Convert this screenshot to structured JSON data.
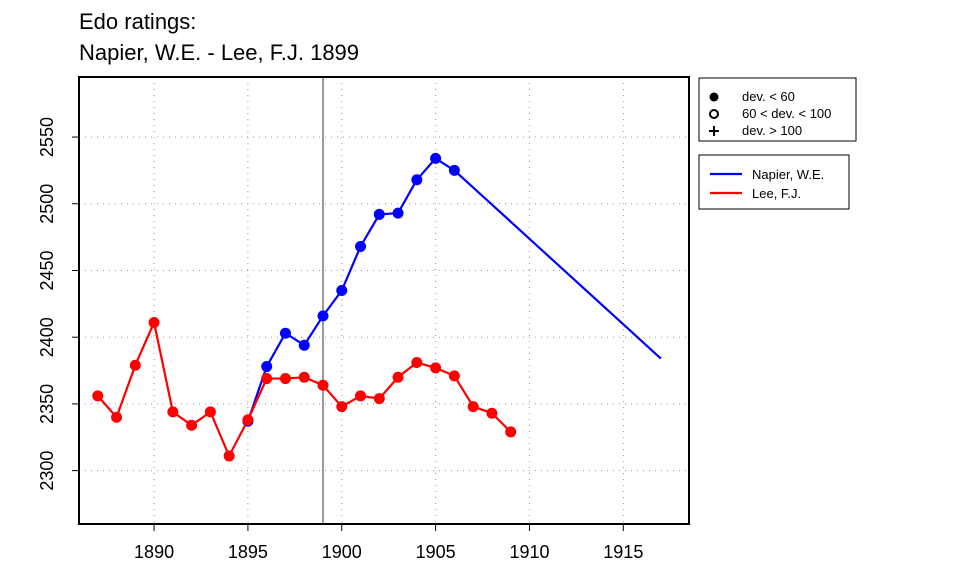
{
  "chart_data": {
    "type": "line",
    "title": "Edo ratings:",
    "subtitle": "Napier, W.E. - Lee, F.J. 1899",
    "xlabel": "",
    "ylabel": "",
    "xlim": [
      1886,
      1918.5
    ],
    "ylim": [
      2260,
      2595
    ],
    "x_ticks": [
      1890,
      1895,
      1900,
      1905,
      1910,
      1915
    ],
    "y_ticks": [
      2300,
      2350,
      2400,
      2450,
      2500,
      2550
    ],
    "grid": true,
    "marker_line_year": 1899,
    "legend_markers": [
      {
        "symbol": "filled-circle",
        "label": "dev. < 60"
      },
      {
        "symbol": "open-circle",
        "label": "60 < dev. < 100"
      },
      {
        "symbol": "plus",
        "label": "dev. > 100"
      }
    ],
    "series": [
      {
        "name": "Napier, W.E.",
        "color": "#0000ff",
        "x": [
          1895,
          1896,
          1897,
          1898,
          1899,
          1900,
          1901,
          1902,
          1903,
          1904,
          1905,
          1906
        ],
        "y": [
          2337,
          2378,
          2403,
          2394,
          2416,
          2435,
          2468,
          2492,
          2493,
          2518,
          2534,
          2525
        ],
        "extension": {
          "x": [
            1906,
            1917
          ],
          "y": [
            2525,
            2384
          ]
        }
      },
      {
        "name": "Lee, F.J.",
        "color": "#ff0000",
        "x": [
          1887,
          1888,
          1889,
          1890,
          1891,
          1892,
          1893,
          1894,
          1895,
          1896,
          1897,
          1898,
          1899,
          1900,
          1901,
          1902,
          1903,
          1904,
          1905,
          1906,
          1907,
          1908,
          1909
        ],
        "y": [
          2356,
          2340,
          2379,
          2411,
          2344,
          2334,
          2344,
          2311,
          2338,
          2369,
          2369,
          2370,
          2364,
          2348,
          2356,
          2354,
          2370,
          2381,
          2377,
          2371,
          2348,
          2343,
          2329
        ]
      }
    ]
  }
}
